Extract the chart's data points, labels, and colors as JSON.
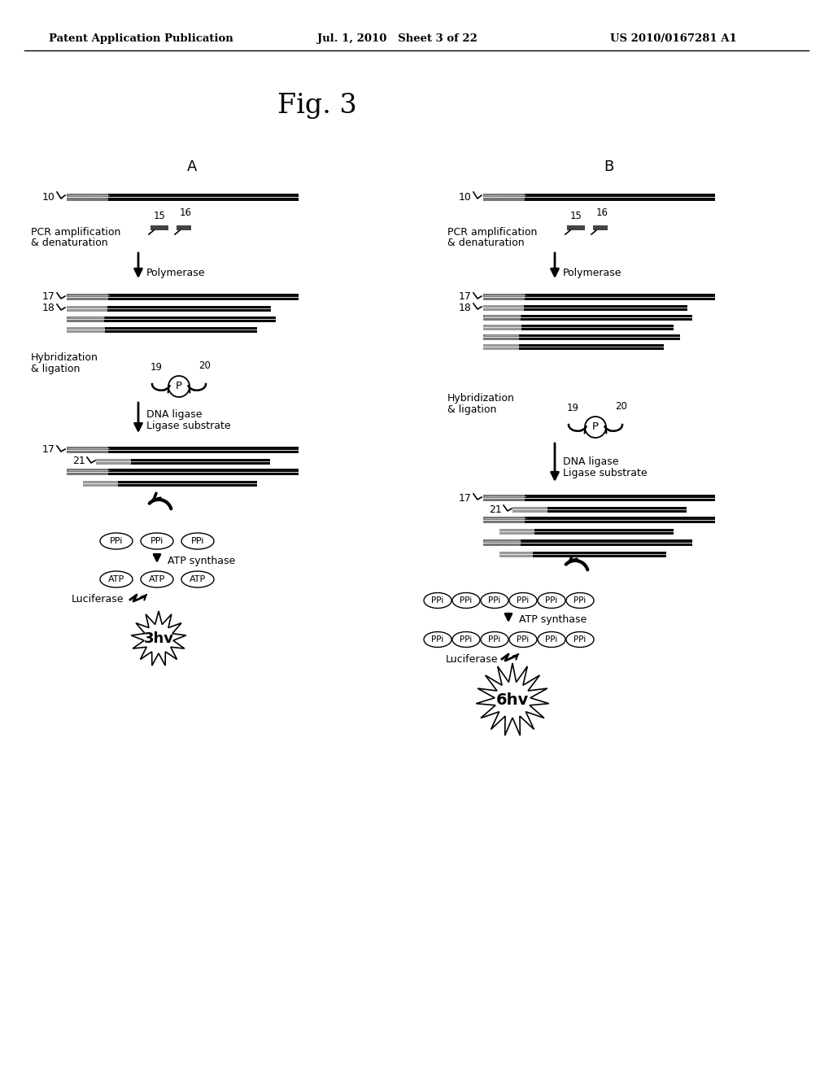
{
  "header_left": "Patent Application Publication",
  "header_mid": "Jul. 1, 2010   Sheet 3 of 22",
  "header_right": "US 2010/0167281 A1",
  "fig_title": "Fig. 3",
  "panel_A_label": "A",
  "panel_B_label": "B",
  "bg_color": "#ffffff",
  "text_color": "#000000"
}
